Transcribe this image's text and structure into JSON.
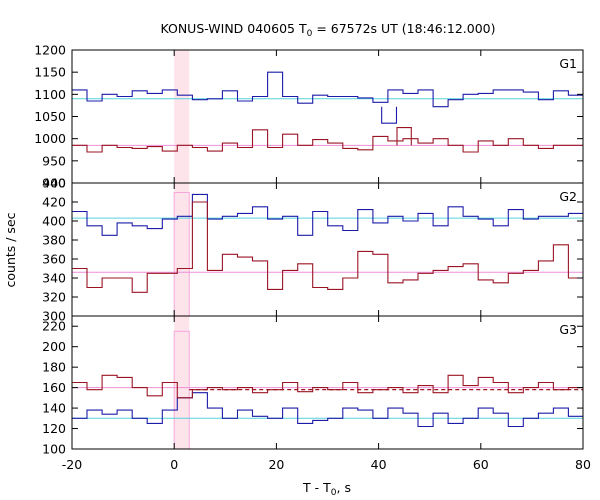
{
  "chart_data": {
    "type": "line",
    "title_main": "KONUS-WIND 040605 T",
    "title_sub": "0",
    "title_rest": " = 67572s UT (18:46:12.000)",
    "xlabel_main": "T - T",
    "xlabel_sub": "0",
    "xlabel_rest": ", s",
    "ylabel": "counts / sec",
    "xlim": [
      -20,
      80
    ],
    "x_ticks": [
      -20,
      0,
      20,
      40,
      60,
      80
    ],
    "bin_width": 2.944,
    "x_start": -20,
    "highlight_interval": [
      0,
      2.944
    ],
    "colors": {
      "blue": "#1c1ca8",
      "red": "#9a1424",
      "cyan": "#55d4dc",
      "pink": "#ee8fd8",
      "highlight": "#fde4ea",
      "pink_bar": "#f6a8dc"
    },
    "panels": [
      {
        "label": "G1",
        "ylim": [
          900,
          1200
        ],
        "y_ticks": [
          900,
          950,
          1000,
          1050,
          1100,
          1150,
          1200
        ],
        "y_tick_labels": [
          "900",
          "950",
          "1000",
          "1050",
          "1100",
          "1150",
          "1200"
        ],
        "series": [
          {
            "color": "blue",
            "values": [
              1110,
              1085,
              1100,
              1095,
              1108,
              1102,
              1110,
              1098,
              1088,
              1090,
              1108,
              1085,
              1095,
              1150,
              1095,
              1080,
              1098,
              1095,
              1095,
              1092,
              1082,
              1110,
              1102,
              1110,
              1072,
              1088,
              1100,
              1102,
              1110,
              1110,
              1105,
              1088,
              1108,
              1098,
              1102,
              1095
            ]
          },
          {
            "color": "red",
            "values": [
              985,
              970,
              985,
              980,
              978,
              982,
              972,
              985,
              980,
              972,
              990,
              980,
              1020,
              980,
              1010,
              985,
              998,
              990,
              978,
              975,
              1005,
              995,
              1000,
              990,
              1000,
              985,
              970,
              995,
              985,
              1000,
              985,
              978,
              985,
              985,
              970,
              985
            ]
          }
        ],
        "baselines": [
          {
            "color": "cyan",
            "value": 1090
          },
          {
            "color": "pink",
            "value": 985
          }
        ],
        "extras": {
          "blue_dip": {
            "x": [
              40.6,
              43.5
            ],
            "low": 1035,
            "high": 1072
          },
          "red_spike": {
            "x": [
              43.6,
              46.4
            ],
            "high": 1025
          }
        }
      },
      {
        "label": "G2",
        "ylim": [
          300,
          440
        ],
        "y_ticks": [
          300,
          320,
          340,
          360,
          380,
          400,
          420,
          440
        ],
        "y_tick_labels": [
          "300",
          "320",
          "340",
          "360",
          "380",
          "400",
          "420",
          "440"
        ],
        "series": [
          {
            "color": "blue",
            "values": [
              410,
              395,
              385,
              398,
              395,
              392,
              402,
              405,
              428,
              402,
              405,
              408,
              415,
              402,
              405,
              385,
              410,
              395,
              390,
              412,
              398,
              405,
              400,
              408,
              395,
              415,
              405,
              402,
              395,
              412,
              402,
              405,
              405,
              408,
              400,
              408
            ]
          },
          {
            "color": "red",
            "values": [
              350,
              330,
              340,
              340,
              325,
              345,
              345,
              350,
              420,
              348,
              365,
              362,
              358,
              328,
              348,
              355,
              330,
              328,
              340,
              368,
              365,
              335,
              338,
              345,
              348,
              352,
              355,
              338,
              335,
              345,
              348,
              358,
              375,
              340,
              335,
              338
            ]
          }
        ],
        "baselines": [
          {
            "color": "cyan",
            "value": 403
          },
          {
            "color": "pink",
            "value": 346
          }
        ],
        "extras": {
          "pink_bar_top": 430
        }
      },
      {
        "label": "G3",
        "ylim": [
          100,
          230
        ],
        "y_ticks": [
          100,
          120,
          140,
          160,
          180,
          200,
          220
        ],
        "y_tick_labels": [
          "100",
          "120",
          "140",
          "160",
          "180",
          "200",
          "220"
        ],
        "series": [
          {
            "color": "blue",
            "values": [
              130,
              138,
              134,
              138,
              130,
              125,
              138,
              150,
              155,
              140,
              130,
              138,
              132,
              130,
              140,
              125,
              128,
              130,
              140,
              138,
              130,
              140,
              135,
              122,
              135,
              125,
              130,
              140,
              135,
              122,
              130,
              135,
              140,
              132,
              125,
              135
            ]
          },
          {
            "color": "red",
            "values": [
              165,
              158,
              172,
              170,
              160,
              152,
              165,
              150,
              158,
              160,
              158,
              160,
              155,
              158,
              165,
              156,
              160,
              158,
              165,
              155,
              158,
              160,
              155,
              162,
              155,
              172,
              162,
              170,
              165,
              155,
              160,
              165,
              158,
              160,
              155,
              162
            ]
          }
        ],
        "baselines": [
          {
            "color": "cyan",
            "value": 130
          },
          {
            "color": "pink",
            "value": 160
          }
        ],
        "extras": {
          "pink_bar_top": 215,
          "dashed_red_value": 158,
          "dashed_from_x": 2.944
        }
      }
    ]
  }
}
